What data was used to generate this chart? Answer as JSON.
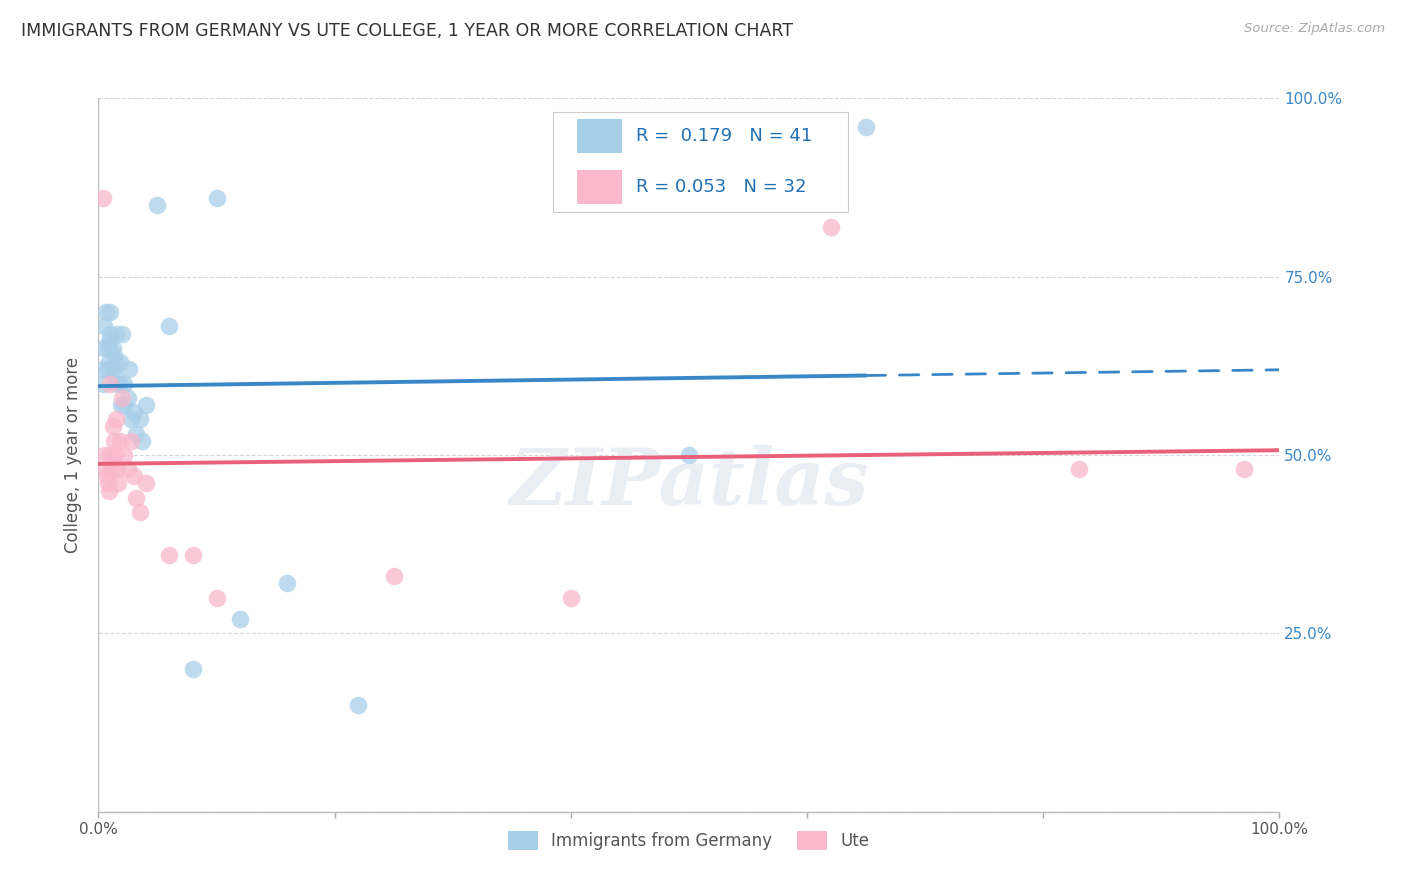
{
  "title": "IMMIGRANTS FROM GERMANY VS UTE COLLEGE, 1 YEAR OR MORE CORRELATION CHART",
  "source": "Source: ZipAtlas.com",
  "ylabel": "College, 1 year or more",
  "ytick_vals": [
    0.0,
    0.25,
    0.5,
    0.75,
    1.0
  ],
  "ytick_labels": [
    "",
    "25.0%",
    "50.0%",
    "75.0%",
    "100.0%"
  ],
  "xtick_vals": [
    0.0,
    0.2,
    0.4,
    0.6,
    0.8,
    1.0
  ],
  "xtick_labels": [
    "0.0%",
    "",
    "",
    "",
    "",
    "100.0%"
  ],
  "legend_blue_label": "Immigrants from Germany",
  "legend_pink_label": "Ute",
  "r_blue": "0.179",
  "n_blue": "41",
  "r_pink": "0.053",
  "n_pink": "32",
  "blue_color": "#a8cfe8",
  "pink_color": "#f9b8cb",
  "blue_line_color": "#3a87c8",
  "pink_line_color": "#e8607a",
  "watermark_text": "ZIPatlas",
  "background_color": "#ffffff",
  "grid_color": "#d8d8d8",
  "blue_scatter_x": [
    0.005,
    0.005,
    0.005,
    0.005,
    0.006,
    0.008,
    0.008,
    0.009,
    0.009,
    0.01,
    0.01,
    0.012,
    0.012,
    0.013,
    0.014,
    0.015,
    0.015,
    0.016,
    0.018,
    0.018,
    0.019,
    0.02,
    0.022,
    0.022,
    0.025,
    0.026,
    0.028,
    0.03,
    0.032,
    0.035,
    0.037,
    0.04,
    0.05,
    0.06,
    0.08,
    0.1,
    0.12,
    0.16,
    0.22,
    0.5,
    0.65
  ],
  "blue_scatter_y": [
    0.68,
    0.65,
    0.62,
    0.6,
    0.7,
    0.65,
    0.62,
    0.66,
    0.63,
    0.7,
    0.67,
    0.65,
    0.62,
    0.64,
    0.61,
    0.67,
    0.63,
    0.6,
    0.63,
    0.6,
    0.57,
    0.67,
    0.6,
    0.57,
    0.58,
    0.62,
    0.55,
    0.56,
    0.53,
    0.55,
    0.52,
    0.57,
    0.85,
    0.68,
    0.2,
    0.86,
    0.27,
    0.32,
    0.15,
    0.5,
    0.96
  ],
  "pink_scatter_x": [
    0.004,
    0.005,
    0.006,
    0.007,
    0.008,
    0.009,
    0.01,
    0.01,
    0.011,
    0.012,
    0.013,
    0.014,
    0.015,
    0.016,
    0.017,
    0.018,
    0.02,
    0.022,
    0.025,
    0.028,
    0.03,
    0.032,
    0.035,
    0.04,
    0.06,
    0.08,
    0.1,
    0.25,
    0.4,
    0.62,
    0.83,
    0.97
  ],
  "pink_scatter_y": [
    0.86,
    0.5,
    0.48,
    0.47,
    0.46,
    0.45,
    0.6,
    0.5,
    0.48,
    0.54,
    0.52,
    0.5,
    0.55,
    0.48,
    0.46,
    0.52,
    0.58,
    0.5,
    0.48,
    0.52,
    0.47,
    0.44,
    0.42,
    0.46,
    0.36,
    0.36,
    0.3,
    0.33,
    0.3,
    0.82,
    0.48,
    0.48
  ]
}
